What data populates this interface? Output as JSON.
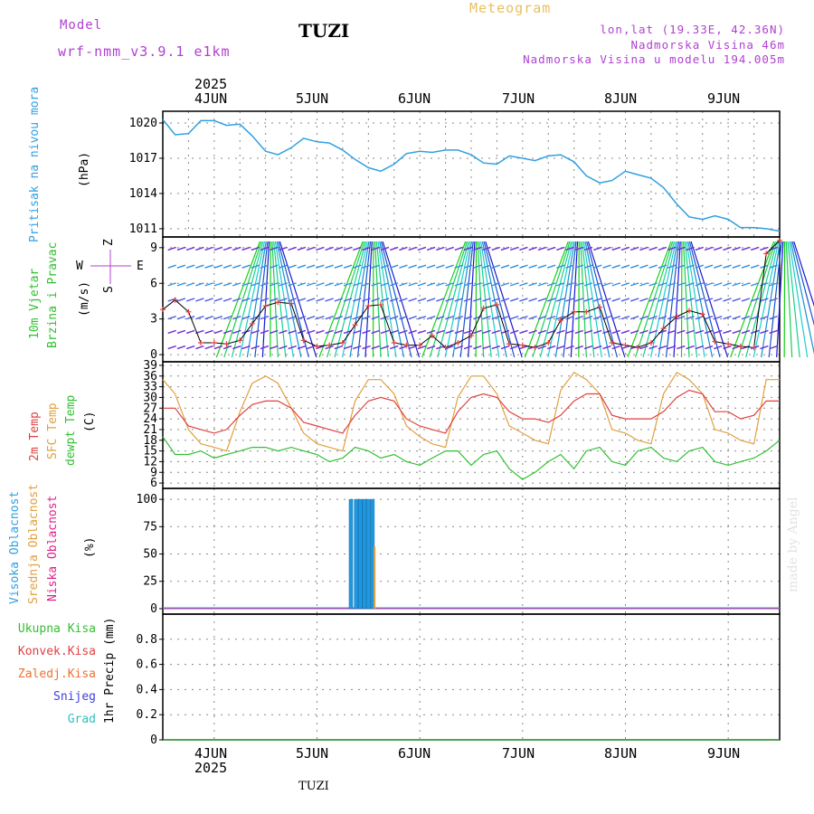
{
  "header": {
    "title": "TUZI",
    "model_label": "Model",
    "model_name": "wrf-nmm_v3.9.1  e1km",
    "meteogram": "Meteogram",
    "lonlat": "lon,lat (19.33E, 42.36N)",
    "elevation": "Nadmorska Visina 46m",
    "elevation_model": "Nadmorska Visina u modelu 194.005m"
  },
  "footer": {
    "title": "TUZI",
    "watermark": "made by Angel"
  },
  "time_axis": {
    "year": "2025",
    "days": [
      "4JUN",
      "5JUN",
      "6JUN",
      "7JUN",
      "8JUN",
      "9JUN"
    ]
  },
  "panels": {
    "pressure": {
      "ylabel_main": "Pritisak na nivou mora",
      "ylabel_unit": "(hPa)",
      "ticks": [
        "1020",
        "1017",
        "1014",
        "1011"
      ],
      "color": "#30a0e0"
    },
    "wind": {
      "ylabel_1": "10m Vjetar",
      "ylabel_2": "Brzina i Pravac",
      "ylabel_unit": "(m/s)",
      "compass_n": "Z",
      "compass_s": "S",
      "compass_w": "W",
      "compass_e": "E",
      "ticks": [
        "9",
        "6",
        "3",
        "0"
      ]
    },
    "temp": {
      "label_2m": "2m Temp",
      "label_sfc": "SFC Temp",
      "label_dew": "dewpt Temp",
      "ylabel_unit": "(C)",
      "ticks": [
        "39",
        "36",
        "33",
        "30",
        "27",
        "24",
        "21",
        "18",
        "15",
        "12",
        "9",
        "6"
      ],
      "color_2m": "#e04040",
      "color_sfc": "#e0a040",
      "color_dew": "#30c030"
    },
    "cloud": {
      "label_high": "Visoka Oblacnost",
      "label_mid": "Srednja Oblacnost",
      "label_low": "Niska Oblacnost",
      "ylabel_unit": "(%)",
      "ticks": [
        "100",
        "75",
        "50",
        "25",
        "0"
      ]
    },
    "precip": {
      "label_total": "Ukupna Kisa",
      "label_conv": "Konvek.Kisa",
      "label_frz": "Zaledj.Kisa",
      "label_snow": "Snijeg",
      "label_grad": "Grad",
      "ylabel_unit": "1hr Precip (mm)",
      "ticks": [
        "0.8",
        "0.6",
        "0.4",
        "0.2",
        "0"
      ]
    }
  },
  "chart_data": [
    {
      "type": "line",
      "series": [
        {
          "name": "Pritisak na nivou mora",
          "x": [
            3.5,
            3.62,
            3.75,
            3.87,
            4.0,
            4.12,
            4.25,
            4.37,
            4.5,
            4.62,
            4.75,
            4.87,
            5.0,
            5.12,
            5.25,
            5.37,
            5.5,
            5.62,
            5.75,
            5.87,
            6.0,
            6.12,
            6.25,
            6.37,
            6.5,
            6.62,
            6.75,
            6.87,
            7.0,
            7.12,
            7.25,
            7.37,
            7.5,
            7.62,
            7.75,
            7.87,
            8.0,
            8.12,
            8.25,
            8.37,
            8.5,
            8.62,
            8.75,
            8.87,
            9.0,
            9.12,
            9.25,
            9.37,
            9.5
          ],
          "values": [
            1020.3,
            1019.0,
            1019.1,
            1020.2,
            1020.2,
            1019.8,
            1019.9,
            1018.9,
            1017.6,
            1017.3,
            1017.9,
            1018.7,
            1018.4,
            1018.3,
            1017.7,
            1016.9,
            1016.2,
            1015.9,
            1016.5,
            1017.4,
            1017.6,
            1017.5,
            1017.7,
            1017.7,
            1017.3,
            1016.6,
            1016.5,
            1017.2,
            1017.0,
            1016.8,
            1017.2,
            1017.3,
            1016.7,
            1015.5,
            1014.9,
            1015.1,
            1015.9,
            1015.6,
            1015.3,
            1014.5,
            1013.1,
            1012.0,
            1011.8,
            1012.1,
            1011.8,
            1011.1,
            1011.1,
            1011.0,
            1010.8
          ]
        }
      ],
      "ylim": [
        1010.3,
        1021.0
      ]
    },
    {
      "type": "line",
      "series": [
        {
          "name": "wind_speed",
          "x": [
            3.5,
            3.62,
            3.75,
            3.87,
            4.0,
            4.12,
            4.25,
            4.37,
            4.5,
            4.62,
            4.75,
            4.87,
            5.0,
            5.12,
            5.25,
            5.37,
            5.5,
            5.62,
            5.75,
            5.87,
            6.0,
            6.12,
            6.25,
            6.37,
            6.5,
            6.62,
            6.75,
            6.87,
            7.0,
            7.12,
            7.25,
            7.37,
            7.5,
            7.62,
            7.75,
            7.87,
            8.0,
            8.12,
            8.25,
            8.37,
            8.5,
            8.62,
            8.75,
            8.87,
            9.0,
            9.12,
            9.25,
            9.37,
            9.5
          ],
          "values": [
            3.8,
            4.6,
            3.6,
            1.0,
            1.0,
            0.9,
            1.2,
            2.6,
            4.1,
            4.4,
            4.3,
            1.2,
            0.7,
            0.8,
            1.0,
            2.5,
            4.1,
            4.2,
            1.0,
            0.8,
            0.8,
            1.6,
            0.6,
            1.0,
            1.6,
            3.9,
            4.2,
            0.9,
            0.8,
            0.6,
            1.0,
            2.9,
            3.6,
            3.6,
            4.0,
            1.0,
            0.8,
            0.6,
            1.0,
            2.2,
            3.2,
            3.7,
            3.4,
            1.1,
            0.9,
            0.7,
            0.6,
            8.5,
            9.6
          ]
        }
      ],
      "ylim": [
        -0.6,
        9.9
      ]
    },
    {
      "type": "line",
      "series": [
        {
          "name": "2m Temp",
          "x": [
            3.5,
            3.62,
            3.75,
            3.87,
            4.0,
            4.12,
            4.25,
            4.37,
            4.5,
            4.62,
            4.75,
            4.87,
            5.0,
            5.12,
            5.25,
            5.37,
            5.5,
            5.62,
            5.75,
            5.87,
            6.0,
            6.12,
            6.25,
            6.37,
            6.5,
            6.62,
            6.75,
            6.87,
            7.0,
            7.12,
            7.25,
            7.37,
            7.5,
            7.62,
            7.75,
            7.87,
            8.0,
            8.12,
            8.25,
            8.37,
            8.5,
            8.62,
            8.75,
            8.87,
            9.0,
            9.12,
            9.25,
            9.37,
            9.5
          ],
          "values": [
            27,
            27,
            22,
            21,
            20,
            21,
            25,
            28,
            29,
            29,
            27,
            23,
            22,
            21,
            20,
            25,
            29,
            30,
            29,
            24,
            22,
            21,
            20,
            26,
            30,
            31,
            30,
            26,
            24,
            24,
            23,
            25,
            29,
            31,
            31,
            25,
            24,
            24,
            24,
            26,
            30,
            32,
            31,
            26,
            26,
            24,
            25,
            29,
            29
          ]
        },
        {
          "name": "SFC Temp",
          "x": [
            3.5,
            3.62,
            3.75,
            3.87,
            4.0,
            4.12,
            4.25,
            4.37,
            4.5,
            4.62,
            4.75,
            4.87,
            5.0,
            5.12,
            5.25,
            5.37,
            5.5,
            5.62,
            5.75,
            5.87,
            6.0,
            6.12,
            6.25,
            6.37,
            6.5,
            6.62,
            6.75,
            6.87,
            7.0,
            7.12,
            7.25,
            7.37,
            7.5,
            7.62,
            7.75,
            7.87,
            8.0,
            8.12,
            8.25,
            8.37,
            8.5,
            8.62,
            8.75,
            8.87,
            9.0,
            9.12,
            9.25,
            9.37,
            9.5
          ],
          "values": [
            35,
            31,
            21,
            17,
            16,
            15,
            26,
            34,
            36,
            34,
            27,
            20,
            17,
            16,
            15,
            29,
            35,
            35,
            31,
            22,
            19,
            17,
            16,
            30,
            36,
            36,
            31,
            22,
            20,
            18,
            17,
            32,
            37,
            35,
            31,
            21,
            20,
            18,
            17,
            31,
            37,
            35,
            31,
            21,
            20,
            18,
            17,
            35,
            35
          ]
        },
        {
          "name": "dewpt Temp",
          "x": [
            3.5,
            3.62,
            3.75,
            3.87,
            4.0,
            4.12,
            4.25,
            4.37,
            4.5,
            4.62,
            4.75,
            4.87,
            5.0,
            5.12,
            5.25,
            5.37,
            5.5,
            5.62,
            5.75,
            5.87,
            6.0,
            6.12,
            6.25,
            6.37,
            6.5,
            6.62,
            6.75,
            6.87,
            7.0,
            7.12,
            7.25,
            7.37,
            7.5,
            7.62,
            7.75,
            7.87,
            8.0,
            8.12,
            8.25,
            8.37,
            8.5,
            8.62,
            8.75,
            8.87,
            9.0,
            9.12,
            9.25,
            9.37,
            9.5
          ],
          "values": [
            19,
            14,
            14,
            15,
            13,
            14,
            15,
            16,
            16,
            15,
            16,
            15,
            14,
            12,
            13,
            16,
            15,
            13,
            14,
            12,
            11,
            13,
            15,
            15,
            11,
            14,
            15,
            10,
            7,
            9,
            12,
            14,
            10,
            15,
            16,
            12,
            11,
            15,
            16,
            13,
            12,
            15,
            16,
            12,
            11,
            12,
            13,
            15,
            18
          ]
        }
      ],
      "ylim": [
        4.5,
        40.0
      ]
    },
    {
      "type": "bar",
      "series": [
        {
          "name": "Visoka Oblacnost",
          "x": [
            5.33,
            5.38,
            5.42,
            5.46,
            5.5,
            5.54
          ],
          "values": [
            100,
            100,
            100,
            100,
            100,
            100
          ]
        }
      ],
      "ylim": [
        -5,
        110
      ]
    },
    {
      "type": "bar",
      "series": [
        {
          "name": "1hr Precip",
          "x": [],
          "values": []
        }
      ],
      "ylim": [
        0,
        1.0
      ]
    }
  ]
}
